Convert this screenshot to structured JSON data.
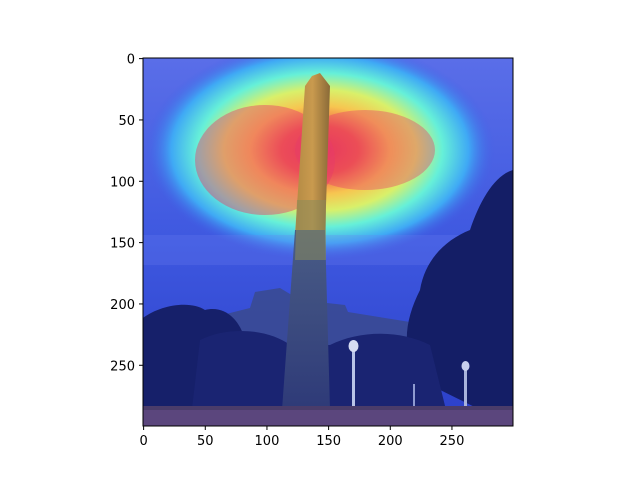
{
  "chart_data": {
    "type": "heatmap",
    "description_visible": "",
    "x": {
      "ticks": [
        0,
        50,
        100,
        150,
        200,
        250
      ],
      "range": [
        -0.5,
        299.5
      ]
    },
    "y": {
      "ticks": [
        0,
        50,
        100,
        150,
        200,
        250
      ],
      "range": [
        -0.5,
        299.5
      ],
      "inverted": true
    },
    "heatmap_hotspots": [
      {
        "x": 110,
        "y": 78,
        "value": 1.0
      },
      {
        "x": 165,
        "y": 75,
        "value": 0.95
      },
      {
        "x": 140,
        "y": 55,
        "value": 0.75
      },
      {
        "x": 70,
        "y": 95,
        "value": 0.6
      },
      {
        "x": 215,
        "y": 95,
        "value": 0.6
      }
    ],
    "colormap": "jet",
    "grid": false,
    "legend": "none"
  }
}
